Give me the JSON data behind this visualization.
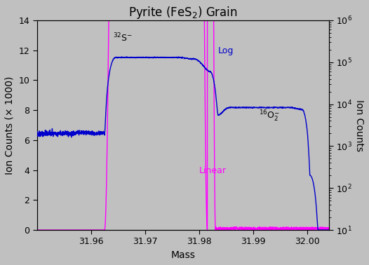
{
  "title": "Pyrite (FeS$_2$) Grain",
  "xlabel": "Mass",
  "ylabel_left": "Ion Counts (× 1000)",
  "ylabel_right": "Ion Counts",
  "bg_color": "#c0c0c0",
  "xlim": [
    31.95,
    32.004
  ],
  "ylim_left": [
    0,
    14
  ],
  "ylim_right": [
    10,
    1000000
  ],
  "xticks": [
    31.96,
    31.97,
    31.98,
    31.99,
    32.0
  ],
  "yticks_left": [
    0,
    2,
    4,
    6,
    8,
    10,
    12,
    14
  ],
  "line_blue_color": "#0000cc",
  "line_magenta_color": "#ff00ff",
  "title_fontsize": 12,
  "axis_fontsize": 10,
  "tick_fontsize": 9,
  "annotation_fontsize": 9
}
